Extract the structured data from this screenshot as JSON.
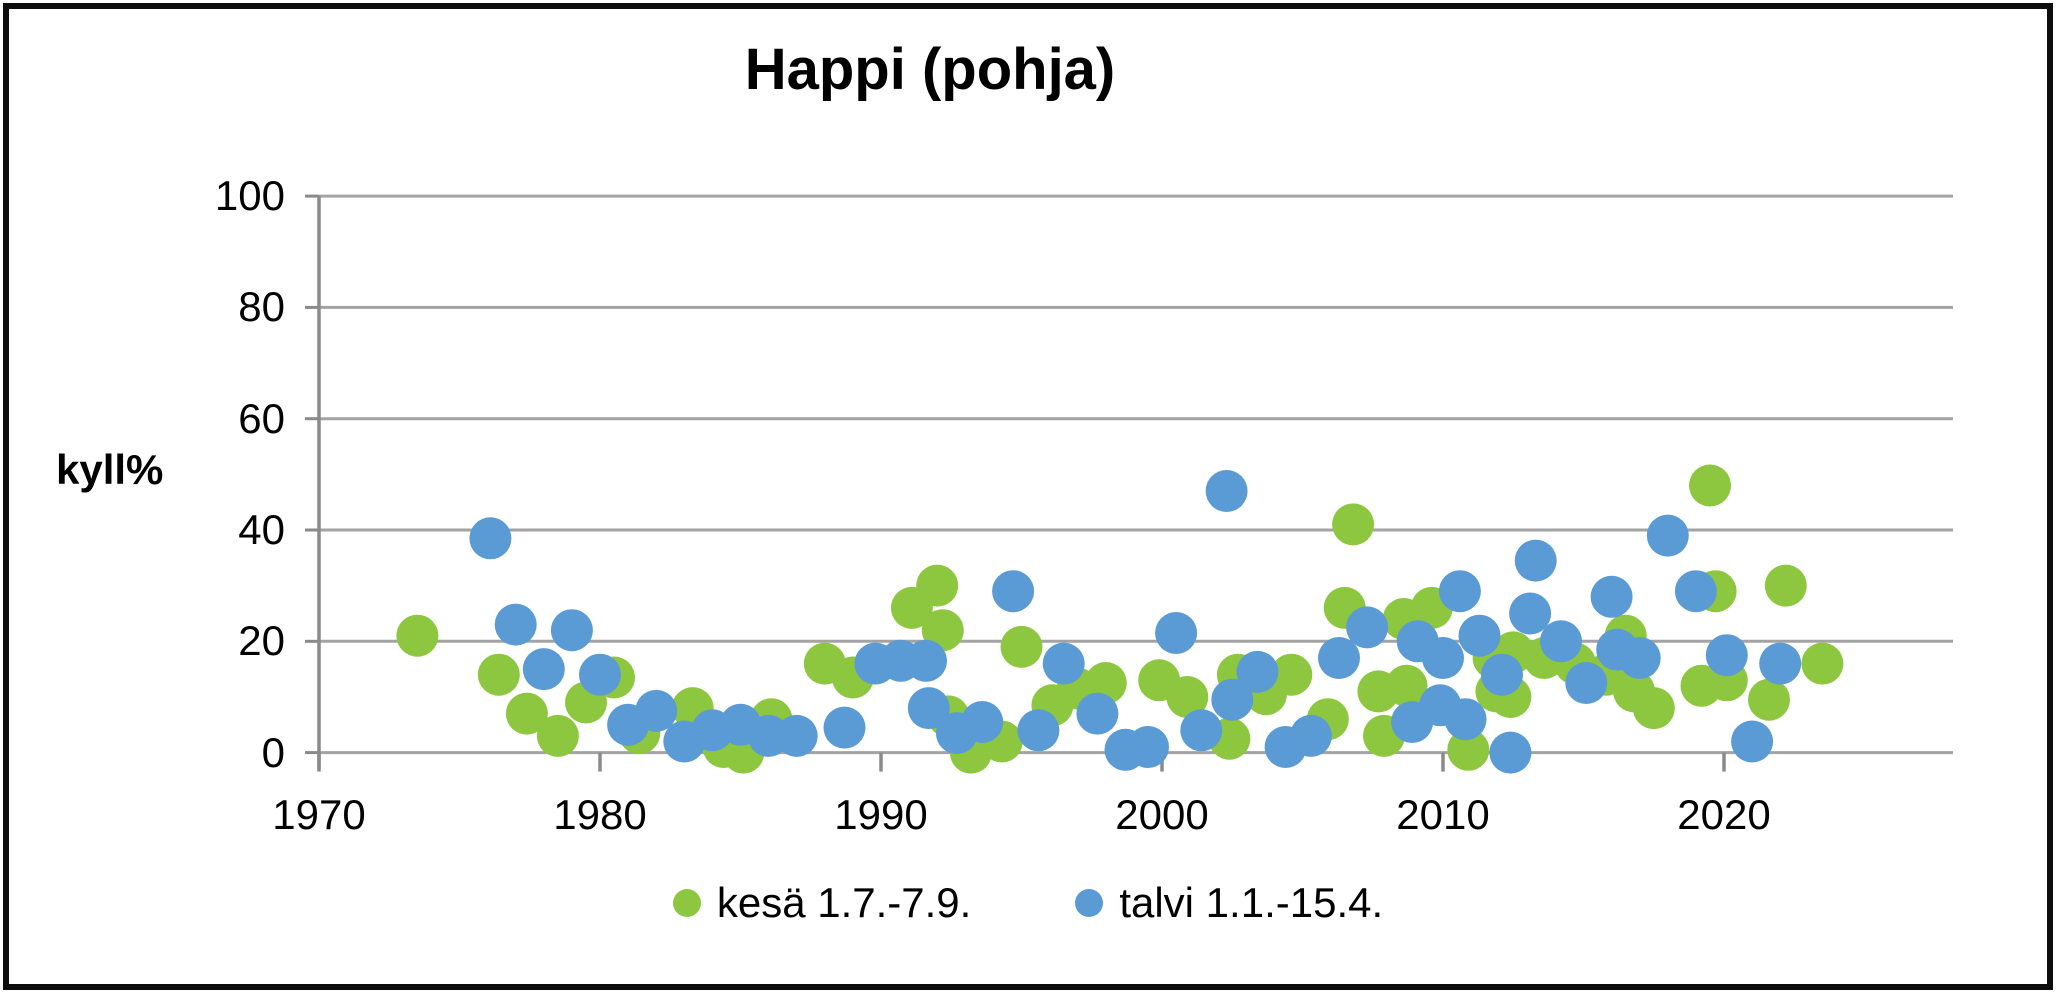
{
  "chart_data": {
    "type": "scatter",
    "title": "Happi (pohja)",
    "xlabel": "",
    "ylabel": "kyll%",
    "xlim": [
      1970,
      2028
    ],
    "ylim": [
      0,
      100
    ],
    "x_ticks": [
      1970,
      1980,
      1990,
      2000,
      2010,
      2020
    ],
    "y_ticks": [
      0,
      20,
      40,
      60,
      80,
      100
    ],
    "grid": true,
    "legend_position": "bottom",
    "marker": "circle",
    "series": [
      {
        "name": "kesä 1.7.-7.9.",
        "color": "#8DC740",
        "points": [
          [
            1973.5,
            21
          ],
          [
            1976.4,
            14
          ],
          [
            1977.4,
            7
          ],
          [
            1978.5,
            3
          ],
          [
            1979.5,
            9
          ],
          [
            1980.5,
            13.5
          ],
          [
            1981.4,
            3.5
          ],
          [
            1983.3,
            8
          ],
          [
            1984.4,
            1
          ],
          [
            1985.1,
            0
          ],
          [
            1986.1,
            6
          ],
          [
            1988.0,
            16
          ],
          [
            1989.0,
            13.5
          ],
          [
            1991.1,
            26
          ],
          [
            1992.0,
            30
          ],
          [
            1992.2,
            22
          ],
          [
            1992.4,
            6.5
          ],
          [
            1993.2,
            0
          ],
          [
            1994.3,
            2
          ],
          [
            1995.0,
            19
          ],
          [
            1996.1,
            8.5
          ],
          [
            1997.0,
            11.5
          ],
          [
            1998.0,
            12.5
          ],
          [
            1999.9,
            13
          ],
          [
            2000.9,
            10
          ],
          [
            2002.4,
            2.5
          ],
          [
            2002.7,
            14
          ],
          [
            2003.7,
            10.5
          ],
          [
            2004.6,
            14
          ],
          [
            2005.9,
            6
          ],
          [
            2006.5,
            26
          ],
          [
            2006.8,
            41
          ],
          [
            2007.7,
            11
          ],
          [
            2007.9,
            3
          ],
          [
            2008.6,
            24
          ],
          [
            2008.7,
            12
          ],
          [
            2009.6,
            26
          ],
          [
            2010.9,
            0.5
          ],
          [
            2011.8,
            17
          ],
          [
            2011.9,
            11
          ],
          [
            2012.4,
            10
          ],
          [
            2012.5,
            18
          ],
          [
            2013.6,
            17
          ],
          [
            2014.7,
            16
          ],
          [
            2015.8,
            14
          ],
          [
            2016.5,
            21
          ],
          [
            2016.8,
            11
          ],
          [
            2017.5,
            8
          ],
          [
            2019.2,
            12
          ],
          [
            2019.5,
            48
          ],
          [
            2019.7,
            29
          ],
          [
            2020.1,
            13
          ],
          [
            2021.6,
            9.5
          ],
          [
            2022.2,
            30
          ],
          [
            2023.5,
            16
          ]
        ]
      },
      {
        "name": "talvi 1.1.-15.4.",
        "color": "#5B9BD5",
        "points": [
          [
            1976.1,
            38.5
          ],
          [
            1977.0,
            23
          ],
          [
            1978.0,
            15
          ],
          [
            1979.0,
            22
          ],
          [
            1980.0,
            14
          ],
          [
            1981.0,
            5
          ],
          [
            1982.0,
            7.5
          ],
          [
            1983.0,
            2
          ],
          [
            1984.0,
            4
          ],
          [
            1985.0,
            5
          ],
          [
            1986.0,
            3
          ],
          [
            1987.0,
            3
          ],
          [
            1988.7,
            4.5
          ],
          [
            1989.8,
            16
          ],
          [
            1990.7,
            16.5
          ],
          [
            1991.6,
            16.5
          ],
          [
            1991.7,
            8
          ],
          [
            1992.7,
            3.5
          ],
          [
            1993.6,
            5.5
          ],
          [
            1994.7,
            29
          ],
          [
            1995.6,
            4
          ],
          [
            1996.5,
            16
          ],
          [
            1997.7,
            7
          ],
          [
            1998.7,
            0.5
          ],
          [
            1999.5,
            1
          ],
          [
            2000.5,
            21.5
          ],
          [
            2001.4,
            4
          ],
          [
            2002.3,
            47
          ],
          [
            2002.5,
            9.5
          ],
          [
            2003.4,
            14.5
          ],
          [
            2004.4,
            1
          ],
          [
            2005.3,
            3
          ],
          [
            2006.3,
            17
          ],
          [
            2007.3,
            22.5
          ],
          [
            2008.9,
            5.5
          ],
          [
            2009.1,
            20
          ],
          [
            2009.9,
            8.5
          ],
          [
            2010.0,
            17
          ],
          [
            2010.6,
            29
          ],
          [
            2010.8,
            6
          ],
          [
            2011.3,
            21
          ],
          [
            2012.1,
            14
          ],
          [
            2012.4,
            0
          ],
          [
            2013.1,
            25
          ],
          [
            2013.3,
            34.5
          ],
          [
            2014.2,
            20
          ],
          [
            2015.1,
            12.5
          ],
          [
            2016.0,
            28
          ],
          [
            2016.2,
            18.5
          ],
          [
            2017.0,
            17
          ],
          [
            2018.0,
            39
          ],
          [
            2019.0,
            29
          ],
          [
            2020.1,
            17.5
          ],
          [
            2021.0,
            2
          ],
          [
            2022.0,
            16
          ]
        ]
      }
    ],
    "colors": {
      "gridline": "#A3A3A3",
      "axis": "#8A8A8A",
      "text": "#000000"
    }
  }
}
